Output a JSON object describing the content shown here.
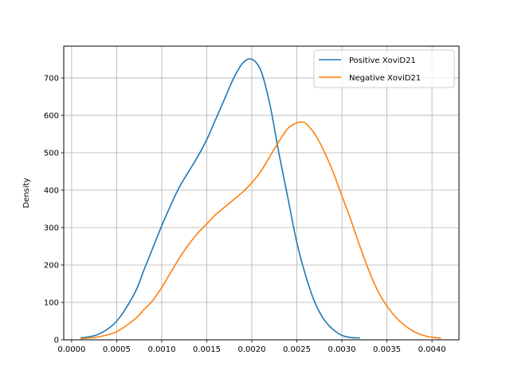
{
  "chart_data": {
    "type": "line",
    "title": "",
    "xlabel": "",
    "ylabel": "Density",
    "xlim": [
      -8.75e-05,
      0.0043
    ],
    "ylim": [
      0,
      785
    ],
    "xticks": [
      0.0,
      0.0005,
      0.001,
      0.0015,
      0.002,
      0.0025,
      0.003,
      0.0035,
      0.004
    ],
    "xtick_labels": [
      "0.0000",
      "0.0005",
      "0.0010",
      "0.0015",
      "0.0020",
      "0.0025",
      "0.0030",
      "0.0035",
      "0.0040"
    ],
    "yticks": [
      0,
      100,
      200,
      300,
      400,
      500,
      600,
      700
    ],
    "ytick_labels": [
      "0",
      "100",
      "200",
      "300",
      "400",
      "500",
      "600",
      "700"
    ],
    "grid": true,
    "legend": "top-right",
    "series": [
      {
        "name": "Positive XoviD21",
        "color": "#1f77b4",
        "x": [
          0.0001,
          0.0003,
          0.0005,
          0.0007,
          0.0008,
          0.0009,
          0.001,
          0.0011,
          0.0012,
          0.0013,
          0.0014,
          0.0015,
          0.0016,
          0.0017,
          0.0018,
          0.0019,
          0.002,
          0.0021,
          0.0022,
          0.0023,
          0.0024,
          0.0025,
          0.0026,
          0.0027,
          0.0028,
          0.0029,
          0.003,
          0.0031,
          0.0032
        ],
        "y": [
          5,
          15,
          50,
          125,
          185,
          245,
          305,
          360,
          410,
          450,
          490,
          535,
          590,
          645,
          700,
          740,
          750,
          720,
          630,
          500,
          380,
          260,
          170,
          100,
          55,
          28,
          12,
          6,
          5
        ]
      },
      {
        "name": "Negative XoviD21",
        "color": "#ff7f0e",
        "x": [
          0.0001,
          0.0003,
          0.0005,
          0.0007,
          0.0008,
          0.0009,
          0.001,
          0.0011,
          0.0012,
          0.0013,
          0.0014,
          0.0015,
          0.0016,
          0.0017,
          0.0018,
          0.0019,
          0.002,
          0.0021,
          0.0022,
          0.0023,
          0.0024,
          0.0025,
          0.00255,
          0.0026,
          0.0027,
          0.0028,
          0.0029,
          0.003,
          0.0031,
          0.0032,
          0.0033,
          0.0034,
          0.0035,
          0.0036,
          0.0037,
          0.0038,
          0.0039,
          0.004,
          0.0041
        ],
        "y": [
          3,
          8,
          22,
          55,
          80,
          105,
          140,
          180,
          220,
          255,
          285,
          310,
          335,
          355,
          375,
          395,
          420,
          450,
          490,
          530,
          565,
          580,
          582,
          578,
          550,
          505,
          450,
          385,
          320,
          250,
          185,
          130,
          90,
          60,
          38,
          22,
          12,
          7,
          4
        ]
      }
    ]
  }
}
